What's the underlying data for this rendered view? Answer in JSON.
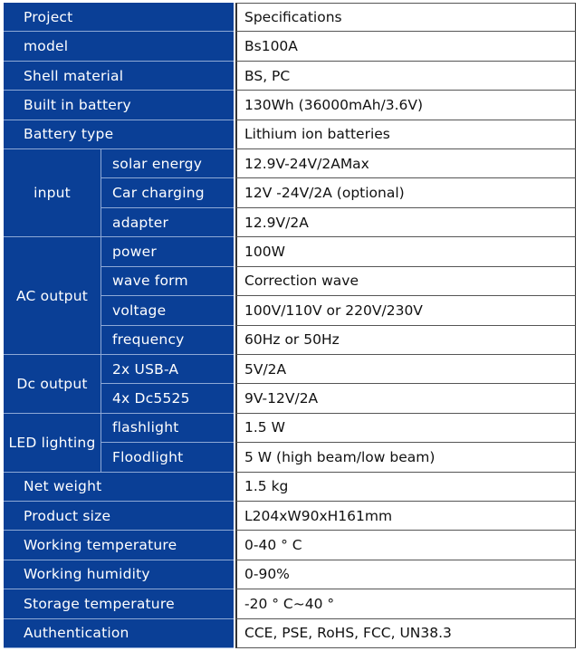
{
  "colors": {
    "header_blue": "#0a3f96",
    "divider": "#8ea9d6"
  },
  "rows": [
    {
      "label": "Project",
      "value": "Specifications"
    },
    {
      "label": "model",
      "value": "Bs100A"
    },
    {
      "label": "Shell material",
      "value": "BS, PC"
    },
    {
      "label": "Built in battery",
      "value": "130Wh (36000mAh/3.6V)"
    },
    {
      "label": "Battery type",
      "value": "Lithium ion batteries"
    },
    {
      "group": "input",
      "items": [
        {
          "label": "solar energy",
          "value": "12.9V-24V/2AMax"
        },
        {
          "label": "Car charging",
          "value": "12V -24V/2A (optional)"
        },
        {
          "label": "adapter",
          "value": "12.9V/2A"
        }
      ]
    },
    {
      "group": "AC output",
      "items": [
        {
          "label": "power",
          "value": "100W"
        },
        {
          "label": "wave form",
          "value": "Correction wave"
        },
        {
          "label": "voltage",
          "value": "100V/110V or 220V/230V"
        },
        {
          "label": "frequency",
          "value": "60Hz or 50Hz"
        }
      ]
    },
    {
      "group": "Dc output",
      "items": [
        {
          "label": "2x USB-A",
          "value": "5V/2A"
        },
        {
          "label": "4x Dc5525",
          "value": "9V-12V/2A"
        }
      ]
    },
    {
      "group": "LED lighting",
      "items": [
        {
          "label": "flashlight",
          "value": "1.5 W"
        },
        {
          "label": "Floodlight",
          "value": "5 W (high beam/low beam)"
        }
      ]
    },
    {
      "label": "Net weight",
      "value": "1.5 kg"
    },
    {
      "label": "Product size",
      "value": "L204xW90xH161mm"
    },
    {
      "label": "Working temperature",
      "value": "0-40 ° C"
    },
    {
      "label": "Working humidity",
      "value": "0-90%"
    },
    {
      "label": "Storage temperature",
      "value": "-20 ° C~40 °"
    },
    {
      "label": "Authentication",
      "value": "CCE, PSE, RoHS, FCC, UN38.3"
    }
  ]
}
